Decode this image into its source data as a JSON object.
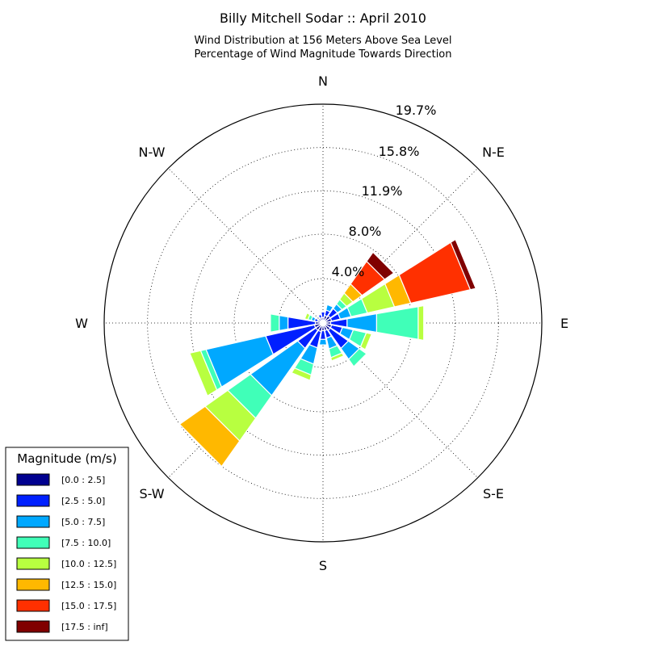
{
  "chart_data": {
    "type": "windrose",
    "title": "Billy Mitchell Sodar :: April 2010",
    "subtitle_lines": [
      "Wind Distribution at 156 Meters Above Sea Level",
      "Percentage of Wind Magnitude Towards Direction"
    ],
    "direction_labels": [
      "N",
      "N-E",
      "E",
      "S-E",
      "S",
      "S-W",
      "W",
      "N-W"
    ],
    "radial_ticks": [
      "4.0%",
      "8.0%",
      "11.9%",
      "15.8%",
      "19.7%"
    ],
    "rmax": 19.7,
    "bins": [
      {
        "label": "[0.0 : 2.5]",
        "color": "#00008f"
      },
      {
        "label": "[2.5 : 5.0]",
        "color": "#0020ff"
      },
      {
        "label": "[5.0 : 7.5]",
        "color": "#00a8ff"
      },
      {
        "label": "[7.5 : 10.0]",
        "color": "#40ffb8"
      },
      {
        "label": "[10.0 : 12.5]",
        "color": "#b8ff40"
      },
      {
        "label": "[12.5 : 15.0]",
        "color": "#ffb800"
      },
      {
        "label": "[15.0 : 17.5]",
        "color": "#ff3000"
      },
      {
        "label": "[17.5 : inf]",
        "color": "#800000"
      }
    ],
    "legend": {
      "title": "Magnitude (m/s)",
      "position": "lower-left"
    },
    "sectors": [
      {
        "dir": 0,
        "values": [
          0.5,
          0.5,
          0,
          0,
          0,
          0,
          0,
          0
        ]
      },
      {
        "dir": 22.5,
        "values": [
          0.7,
          0.5,
          0.5,
          0,
          0,
          0,
          0,
          0
        ]
      },
      {
        "dir": 45,
        "values": [
          0.8,
          0.8,
          0.5,
          0.5,
          0.7,
          1.0,
          2.5,
          1.0
        ]
      },
      {
        "dir": 67.5,
        "values": [
          0.8,
          0.8,
          1.0,
          1.5,
          2.5,
          1.5,
          5.5,
          0.5
        ]
      },
      {
        "dir": 90,
        "values": [
          0.7,
          1.5,
          2.7,
          3.8,
          0.5,
          0,
          0,
          0
        ]
      },
      {
        "dir": 112.5,
        "values": [
          0.8,
          1.0,
          1.0,
          1.2,
          0.5,
          0,
          0,
          0
        ]
      },
      {
        "dir": 135,
        "values": [
          0.8,
          2.0,
          1.2,
          0.8,
          0,
          0,
          0,
          0
        ]
      },
      {
        "dir": 157.5,
        "values": [
          0.7,
          0.7,
          1.0,
          0.8,
          0.3,
          0,
          0,
          0
        ]
      },
      {
        "dir": 180,
        "values": [
          0.7,
          0.8,
          0.5,
          0,
          0,
          0,
          0,
          0
        ]
      },
      {
        "dir": 202.5,
        "values": [
          0.8,
          1.5,
          1.5,
          1.0,
          0.5,
          0,
          0,
          0
        ]
      },
      {
        "dir": 225,
        "values": [
          0.8,
          2.0,
          5.2,
          2.5,
          2.5,
          2.8,
          0,
          0
        ]
      },
      {
        "dir": 247.5,
        "values": [
          0.8,
          4.5,
          5.5,
          0.5,
          1.0,
          0,
          0,
          0
        ]
      },
      {
        "dir": 270,
        "values": [
          0.7,
          2.5,
          0.8,
          0.8,
          0,
          0,
          0,
          0
        ]
      },
      {
        "dir": 292.5,
        "values": [
          0.5,
          0.3,
          0.3,
          0.3,
          0.3,
          0,
          0,
          0
        ]
      },
      {
        "dir": 315,
        "values": [
          0.5,
          0,
          0,
          0,
          0,
          0,
          0,
          0
        ]
      },
      {
        "dir": 337.5,
        "values": [
          0.5,
          0.3,
          0,
          0,
          0,
          0,
          0,
          0
        ]
      }
    ]
  }
}
